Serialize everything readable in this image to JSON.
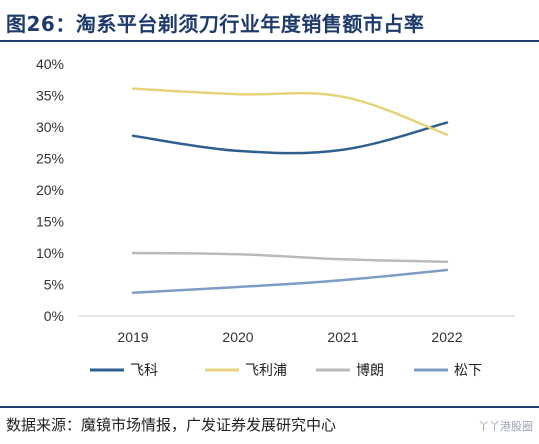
{
  "header": {
    "title": "图26：淘系平台剃须刀行业年度销售额市占率"
  },
  "footer": {
    "source": "数据来源：魔镜市场情报，广发证券发展研究中心",
    "watermark": "丫丫港股圈"
  },
  "chart_data": {
    "type": "line",
    "title": "图26：淘系平台剃须刀行业年度销售额市占率",
    "x": [
      "2019",
      "2020",
      "2021",
      "2022"
    ],
    "ylim": [
      0,
      40
    ],
    "yticks": [
      "0%",
      "5%",
      "10%",
      "15%",
      "20%",
      "25%",
      "30%",
      "35%",
      "40%"
    ],
    "grid": false,
    "legend": "bottom",
    "series": [
      {
        "name": "飞科",
        "color": "#2e5f8e",
        "values": [
          28.6,
          26.2,
          26.4,
          30.7
        ]
      },
      {
        "name": "飞利浦",
        "color": "#e6d37a",
        "values": [
          36.1,
          35.2,
          34.8,
          28.8
        ]
      },
      {
        "name": "博朗",
        "color": "#b9b9b9",
        "values": [
          10.0,
          9.8,
          9.0,
          8.6
        ]
      },
      {
        "name": "松下",
        "color": "#7f9dc2",
        "values": [
          3.7,
          4.6,
          5.7,
          7.3
        ]
      }
    ]
  }
}
